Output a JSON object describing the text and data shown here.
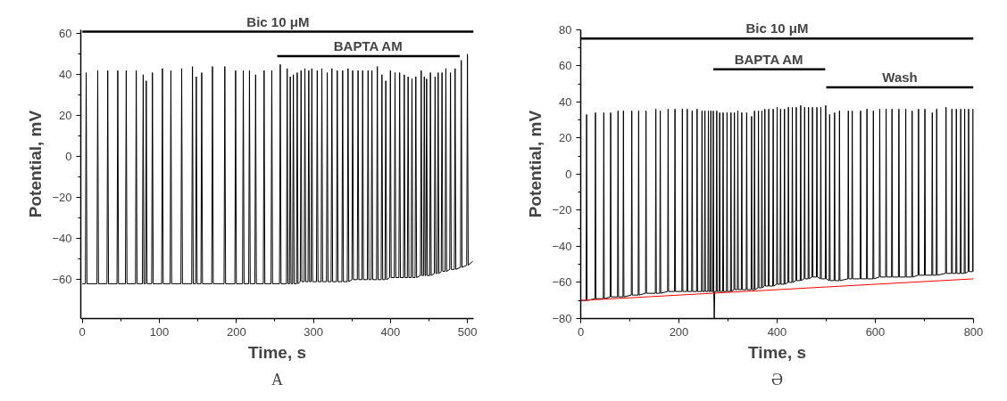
{
  "chart_data": [
    {
      "type": "line",
      "xlabel": "Time, s",
      "ylabel": "Potential, mV",
      "xlim": [
        -2,
        508
      ],
      "ylim": [
        -79,
        62
      ],
      "xticks": [
        0,
        100,
        200,
        300,
        400,
        500
      ],
      "yticks": [
        -60,
        -40,
        -20,
        0,
        20,
        40,
        60
      ],
      "grid": false,
      "legend": false,
      "annotations": [
        "A"
      ],
      "series": [
        {
          "name": "Bic 10 μM",
          "color": "#000000",
          "x": [
            0,
            508
          ],
          "values": [
            61,
            61
          ]
        },
        {
          "name": "BAPTA AM",
          "color": "#000000",
          "x": [
            253,
            490
          ],
          "values": [
            49,
            49
          ]
        },
        {
          "color": "#000000",
          "x": [
            0,
            4,
            5,
            6,
            19,
            20,
            21,
            32,
            33,
            34,
            45,
            46,
            47,
            56,
            57,
            58,
            69,
            70,
            71,
            78,
            79,
            80,
            82,
            83,
            84,
            90,
            91,
            92,
            103,
            104,
            105,
            114,
            115,
            116,
            128,
            129,
            130,
            142,
            143,
            144,
            147,
            148,
            149,
            154,
            155,
            156,
            168,
            169,
            170,
            184,
            185,
            186,
            198,
            199,
            200,
            208,
            209,
            210,
            216,
            217,
            218,
            224,
            225,
            226,
            235,
            236,
            237,
            245,
            246,
            247,
            256,
            257,
            258,
            265,
            266,
            267,
            269,
            270,
            271,
            273,
            274,
            275,
            278,
            279,
            280,
            283,
            284,
            285,
            288,
            289,
            290,
            293,
            294,
            295,
            297,
            298,
            299,
            304,
            305,
            306,
            310,
            311,
            312,
            317,
            318,
            319,
            323,
            324,
            325,
            330,
            331,
            332,
            337,
            338,
            339,
            344,
            345,
            346,
            350,
            351,
            352,
            357,
            358,
            359,
            363,
            364,
            365,
            370,
            371,
            372,
            375,
            376,
            377,
            382,
            383,
            384,
            388,
            389,
            390,
            393,
            394,
            395,
            399,
            400,
            401,
            405,
            406,
            407,
            411,
            412,
            413,
            417,
            418,
            419,
            422,
            423,
            424,
            427,
            428,
            429,
            432,
            433,
            434,
            439,
            440,
            441,
            443,
            444,
            445,
            446,
            447,
            448,
            451,
            452,
            453,
            457,
            458,
            459,
            461,
            462,
            463,
            466,
            467,
            468,
            471,
            472,
            473,
            477,
            478,
            479,
            483,
            484,
            485,
            491,
            492,
            493,
            499,
            500,
            501,
            507
          ],
          "values": [
            -62,
            -62,
            41,
            -62,
            -62,
            42,
            -62,
            -62,
            42,
            -62,
            -62,
            42,
            -62,
            -62,
            42,
            -62,
            -62,
            42,
            -62,
            -62,
            40,
            -62,
            -62,
            37,
            -62,
            -62,
            41,
            -62,
            -62,
            43,
            -62,
            -62,
            42,
            -62,
            -62,
            43,
            -62,
            -62,
            44,
            -62,
            -62,
            39,
            -62,
            -62,
            41,
            -62,
            -62,
            44,
            -62,
            -62,
            44,
            -62,
            -62,
            42,
            -62,
            -62,
            42,
            -62,
            -62,
            42,
            -62,
            -62,
            40,
            -62,
            -62,
            42,
            -62,
            -62,
            42,
            -62,
            -62,
            45,
            -62,
            -62,
            43,
            -62,
            -62,
            39,
            -62,
            -62,
            40,
            -62,
            -62,
            41,
            -62,
            -61,
            42,
            -61,
            -61,
            43,
            -61,
            -61,
            42,
            -61,
            -61,
            43,
            -61,
            -61,
            42,
            -61,
            -61,
            43,
            -61,
            -61,
            41,
            -61,
            -61,
            43,
            -61,
            -61,
            42,
            -61,
            -61,
            42,
            -61,
            -61,
            43,
            -61,
            -60,
            42,
            -60,
            -60,
            42,
            -60,
            -60,
            42,
            -60,
            -60,
            42,
            -60,
            -60,
            42,
            -60,
            -60,
            44,
            -60,
            -60,
            40,
            -60,
            -60,
            37,
            -60,
            -59,
            42,
            -59,
            -59,
            41,
            -59,
            -59,
            41,
            -59,
            -59,
            40,
            -59,
            -59,
            39,
            -59,
            -59,
            38,
            -59,
            -59,
            39,
            -59,
            -58,
            42,
            -58,
            -58,
            39,
            -58,
            -58,
            38,
            -58,
            -58,
            41,
            -58,
            -57,
            39,
            -57,
            -57,
            41,
            -57,
            -56,
            41,
            -56,
            -56,
            43,
            -56,
            -55,
            41,
            -55,
            -55,
            43,
            -55,
            -54,
            47,
            -54,
            -53,
            50,
            -53,
            -51
          ]
        }
      ]
    },
    {
      "type": "line",
      "xlabel": "Time, s",
      "ylabel": "Potential, mV",
      "xlim": [
        0,
        800
      ],
      "ylim": [
        -80,
        80
      ],
      "xticks": [
        0,
        200,
        400,
        600,
        800
      ],
      "yticks": [
        -80,
        -60,
        -40,
        -20,
        0,
        20,
        40,
        60,
        80
      ],
      "grid": false,
      "legend": false,
      "annotations": [
        "Ә"
      ],
      "series": [
        {
          "name": "Bic 10 μM",
          "color": "#000000",
          "x": [
            0,
            800
          ],
          "values": [
            75,
            75
          ]
        },
        {
          "name": "BAPTA AM",
          "color": "#000000",
          "x": [
            270,
            498
          ],
          "values": [
            58,
            58
          ]
        },
        {
          "name": "Wash",
          "color": "#000000",
          "x": [
            500,
            800
          ],
          "values": [
            48,
            48
          ]
        },
        {
          "color": "#000000",
          "x": [
            0,
            11,
            12,
            13,
            29,
            30,
            31,
            46,
            47,
            48,
            60,
            61,
            62,
            75,
            76,
            77,
            86,
            87,
            88,
            103,
            104,
            105,
            117,
            118,
            119,
            132,
            133,
            134,
            152,
            153,
            154,
            161,
            162,
            163,
            177,
            178,
            179,
            191,
            192,
            193,
            206,
            207,
            208,
            216,
            217,
            218,
            226,
            227,
            228,
            236,
            237,
            238,
            246,
            247,
            248,
            252,
            253,
            254,
            259,
            260,
            261,
            264,
            265,
            266,
            269,
            270,
            271,
            272,
            273,
            276,
            277,
            278,
            282,
            283,
            284,
            289,
            290,
            291,
            297,
            298,
            299,
            305,
            306,
            307,
            312,
            313,
            314,
            319,
            320,
            321,
            327,
            328,
            329,
            337,
            338,
            339,
            347,
            348,
            349,
            353,
            354,
            355,
            361,
            362,
            363,
            368,
            369,
            370,
            374,
            375,
            376,
            382,
            383,
            384,
            391,
            392,
            393,
            399,
            400,
            401,
            406,
            407,
            408,
            414,
            415,
            416,
            422,
            423,
            424,
            430,
            431,
            432,
            438,
            439,
            440,
            447,
            448,
            449,
            455,
            456,
            457,
            463,
            464,
            465,
            471,
            472,
            473,
            480,
            481,
            482,
            488,
            489,
            490,
            498,
            499,
            500,
            506,
            507,
            508,
            516,
            517,
            518,
            526,
            527,
            528,
            544,
            545,
            546,
            552,
            553,
            554,
            569,
            570,
            571,
            582,
            583,
            584,
            595,
            596,
            597,
            608,
            609,
            610,
            621,
            622,
            623,
            633,
            634,
            635,
            647,
            648,
            649,
            661,
            662,
            663,
            674,
            675,
            676,
            687,
            688,
            689,
            700,
            701,
            702,
            715,
            716,
            717,
            724,
            725,
            726,
            743,
            744,
            745,
            755,
            756,
            757,
            764,
            765,
            766,
            773,
            774,
            775,
            781,
            782,
            783,
            789,
            790,
            791,
            798,
            799,
            800
          ],
          "values": [
            -70,
            -70,
            33,
            -70,
            -69,
            34,
            -69,
            -69,
            34,
            -69,
            -68,
            34,
            -68,
            -68,
            35,
            -68,
            -68,
            35,
            -68,
            -67,
            35,
            -67,
            -67,
            35,
            -67,
            -66,
            35,
            -66,
            -66,
            36,
            -66,
            -66,
            35,
            -66,
            -65,
            36,
            -65,
            -65,
            36,
            -65,
            -65,
            36,
            -65,
            -65,
            36,
            -65,
            -65,
            35,
            -65,
            -65,
            36,
            -65,
            -65,
            35,
            -65,
            -65,
            35,
            -65,
            -65,
            35,
            -65,
            -65,
            35,
            -65,
            -65,
            35,
            -65,
            -80,
            -65,
            -65,
            35,
            -65,
            -65,
            34,
            -65,
            -65,
            34,
            -65,
            -65,
            34,
            -65,
            -65,
            34,
            -65,
            -64,
            34,
            -64,
            -64,
            35,
            -64,
            -64,
            34,
            -64,
            -64,
            34,
            -64,
            -64,
            32,
            -64,
            -64,
            35,
            -64,
            -63,
            35,
            -63,
            -63,
            35,
            -63,
            -62,
            36,
            -62,
            -62,
            36,
            -62,
            -62,
            36,
            -62,
            -61,
            37,
            -61,
            -61,
            36,
            -61,
            -61,
            36,
            -61,
            -60,
            37,
            -60,
            -60,
            37,
            -60,
            -59,
            37,
            -59,
            -59,
            38,
            -59,
            -58,
            37,
            -58,
            -58,
            37,
            -58,
            -57,
            37,
            -57,
            -57,
            37,
            -57,
            -58,
            37,
            -58,
            -58,
            38,
            -58,
            -59,
            33,
            -59,
            -59,
            34,
            -59,
            -59,
            35,
            -59,
            -58,
            35,
            -58,
            -58,
            35,
            -58,
            -58,
            35,
            -58,
            -58,
            36,
            -58,
            -58,
            35,
            -58,
            -57,
            36,
            -57,
            -57,
            36,
            -57,
            -57,
            36,
            -57,
            -57,
            36,
            -57,
            -57,
            36,
            -57,
            -57,
            35,
            -57,
            -56,
            36,
            -56,
            -56,
            36,
            -56,
            -56,
            34,
            -56,
            -56,
            36,
            -56,
            -55,
            37,
            -55,
            -55,
            36,
            -55,
            -55,
            36,
            -55,
            -55,
            36,
            -55,
            -55,
            36,
            -55,
            -54,
            36,
            -54,
            -54,
            36,
            -54
          ]
        },
        {
          "type": "line",
          "color": "#ff0000",
          "x": [
            0,
            800
          ],
          "values": [
            -70,
            -58
          ]
        }
      ]
    }
  ]
}
